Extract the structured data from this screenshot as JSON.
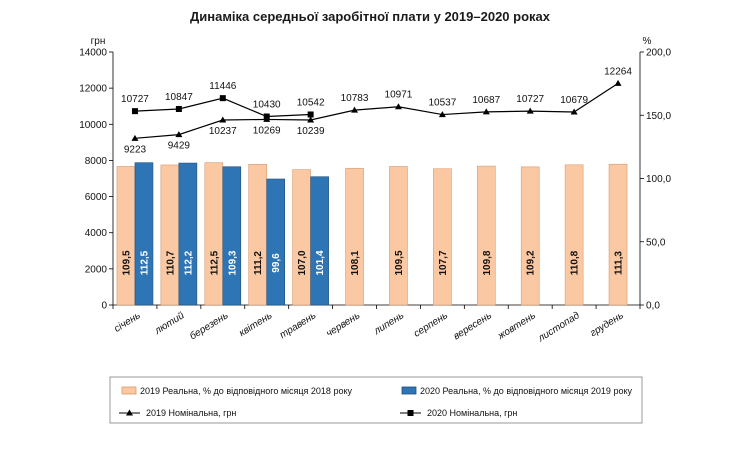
{
  "chart_data": {
    "type": "bar",
    "title": "Динаміка середньої заробітної плати у 2019–2020 роках",
    "left_unit": "грн",
    "right_unit": "%",
    "left_ylim": [
      0,
      14000
    ],
    "left_ticks": [
      "0",
      "2000",
      "4000",
      "6000",
      "8000",
      "10000",
      "12000",
      "14000"
    ],
    "right_ylim": [
      0,
      200
    ],
    "right_ticks": [
      "0,0",
      "50,0",
      "100,0",
      "150,0",
      "200,0"
    ],
    "categories": [
      "січень",
      "лютий",
      "березень",
      "квітень",
      "травень",
      "червень",
      "липень",
      "серпень",
      "вересень",
      "жовтень",
      "листопад",
      "грудень"
    ],
    "bar_series": [
      {
        "name": "2019 Реальна, % до відповідного місяця 2018 року",
        "color": "#FAC8A2",
        "stroke": "#D79A6F",
        "axis": "right",
        "values": [
          109.5,
          110.7,
          112.5,
          111.2,
          107.0,
          108.1,
          109.5,
          107.7,
          109.8,
          109.2,
          110.8,
          111.3
        ],
        "labels": [
          "109,5",
          "110,7",
          "112,5",
          "111,2",
          "107,0",
          "108,1",
          "109,5",
          "107,7",
          "109,8",
          "109,2",
          "110,8",
          "111,3"
        ]
      },
      {
        "name": "2020 Реальна, % до відповідного місяця 2019 року",
        "color": "#2E75B6",
        "stroke": "#1F4E79",
        "axis": "right",
        "values": [
          112.5,
          112.2,
          109.3,
          99.6,
          101.4
        ],
        "labels": [
          "112,5",
          "112,2",
          "109,3",
          "99,6",
          "101,4"
        ]
      }
    ],
    "line_series": [
      {
        "name": "2019 Номінальна, грн",
        "marker": "triangle",
        "axis": "left",
        "values": [
          9223,
          9429,
          10237,
          10269,
          10239,
          10783,
          10971,
          10537,
          10687,
          10727,
          10679,
          12264
        ],
        "labels": [
          "9223",
          "9429",
          "10237",
          "10269",
          "10239",
          "10783",
          "10971",
          "10537",
          "10687",
          "10727",
          "10679",
          "12264"
        ]
      },
      {
        "name": "2020 Номінальна, грн",
        "marker": "square",
        "axis": "left",
        "values": [
          10727,
          10847,
          11446,
          10430,
          10542
        ],
        "labels": [
          "10727",
          "10847",
          "11446",
          "10430",
          "10542"
        ]
      }
    ],
    "legend_placement": "bottom",
    "grid": false
  }
}
